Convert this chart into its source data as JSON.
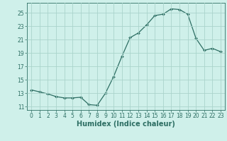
{
  "x": [
    0,
    1,
    2,
    3,
    4,
    5,
    6,
    7,
    8,
    9,
    10,
    11,
    12,
    13,
    14,
    15,
    16,
    17,
    18,
    19,
    20,
    21,
    22,
    23
  ],
  "y": [
    13.5,
    13.2,
    12.9,
    12.5,
    12.3,
    12.3,
    12.4,
    11.3,
    11.2,
    13.0,
    15.5,
    18.5,
    21.3,
    22.0,
    23.2,
    24.6,
    24.8,
    25.6,
    25.5,
    24.8,
    21.2,
    19.4,
    19.7,
    19.2
  ],
  "line_color": "#2d6e63",
  "marker": "D",
  "marker_size": 2.0,
  "bg_color": "#cff0ea",
  "grid_color": "#aad4cc",
  "xlabel": "Humidex (Indice chaleur)",
  "xlim": [
    -0.5,
    23.5
  ],
  "ylim": [
    10.5,
    26.5
  ],
  "yticks": [
    11,
    13,
    15,
    17,
    19,
    21,
    23,
    25
  ],
  "xticks": [
    0,
    1,
    2,
    3,
    4,
    5,
    6,
    7,
    8,
    9,
    10,
    11,
    12,
    13,
    14,
    15,
    16,
    17,
    18,
    19,
    20,
    21,
    22,
    23
  ],
  "tick_fontsize": 5.5,
  "label_fontsize": 7.0,
  "axis_color": "#2d6e63"
}
